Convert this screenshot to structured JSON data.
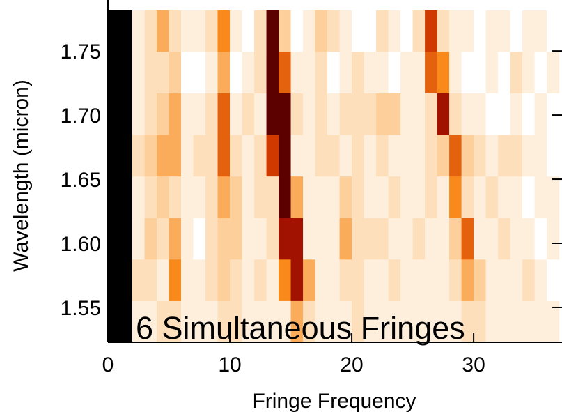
{
  "chart_data": {
    "type": "heatmap",
    "annotation": "6 Simultaneous Fringes",
    "xlabel": "Fringe Frequency",
    "ylabel": "Wavelength (micron)",
    "xlim": [
      0,
      37.25
    ],
    "xticks": [
      0,
      10,
      20,
      30
    ],
    "ylim": [
      1.5228,
      1.7816
    ],
    "yticks": [
      1.55,
      {
        "value": 1.6,
        "label": "1.60"
      },
      1.65,
      {
        "value": 1.7,
        "label": "1.70"
      },
      1.75
    ],
    "yedges": [
      1.5228,
      1.5552,
      1.5876,
      1.62,
      1.6524,
      1.6848,
      1.7172,
      1.7496,
      1.7816
    ],
    "colorscale": [
      [
        0,
        "#ffffff"
      ],
      [
        3,
        "#fdcf9a"
      ],
      [
        5,
        "#f8891a"
      ],
      [
        7,
        "#d03a00"
      ],
      [
        8.5,
        "#8a0000"
      ],
      [
        10,
        "#000000"
      ]
    ],
    "z": [
      [
        10,
        10,
        1,
        1,
        2,
        2,
        1,
        1,
        1,
        2,
        2,
        1,
        1,
        1,
        1,
        4,
        2,
        1,
        1,
        1,
        2,
        1,
        1,
        1,
        1,
        1,
        1,
        1,
        1,
        2,
        2,
        1,
        1,
        1,
        1,
        1,
        1
      ],
      [
        10,
        10,
        2,
        2,
        1,
        5,
        1,
        1,
        2,
        3,
        2,
        1,
        2,
        1,
        5,
        8,
        4,
        1,
        1,
        2,
        2,
        1,
        1,
        2,
        1,
        1,
        1,
        1,
        2,
        4,
        3,
        1,
        1,
        1,
        2,
        1,
        0
      ],
      [
        10,
        10,
        1,
        3,
        2,
        4,
        1,
        0,
        2,
        3,
        3,
        1,
        1,
        2,
        8,
        8,
        1,
        1,
        1,
        4,
        2,
        2,
        2,
        1,
        1,
        2,
        1,
        1,
        3,
        6,
        1,
        1,
        2,
        1,
        1,
        0,
        1
      ],
      [
        10,
        10,
        1,
        2,
        3,
        2,
        1,
        1,
        2,
        4,
        3,
        1,
        2,
        2,
        9,
        4,
        1,
        1,
        1,
        3,
        2,
        1,
        1,
        2,
        1,
        1,
        2,
        1,
        5,
        2,
        1,
        2,
        1,
        1,
        0,
        1,
        1
      ],
      [
        10,
        10,
        2,
        3,
        4,
        4,
        1,
        2,
        2,
        6,
        2,
        1,
        2,
        7,
        9,
        1,
        1,
        2,
        2,
        1,
        2,
        1,
        2,
        1,
        1,
        1,
        2,
        3,
        6,
        3,
        2,
        1,
        2,
        2,
        1,
        1,
        0
      ],
      [
        10,
        10,
        1,
        2,
        3,
        4,
        1,
        1,
        2,
        6,
        1,
        2,
        1,
        9,
        9,
        2,
        1,
        2,
        1,
        2,
        2,
        2,
        3,
        3,
        1,
        1,
        2,
        8,
        2,
        1,
        1,
        0,
        0,
        1,
        0,
        1,
        0
      ],
      [
        10,
        10,
        1,
        2,
        2,
        3,
        0,
        0,
        1,
        4,
        0,
        1,
        2,
        9,
        6,
        1,
        1,
        2,
        0,
        1,
        2,
        1,
        1,
        0,
        1,
        1,
        6,
        5,
        1,
        0,
        0,
        1,
        0,
        2,
        1,
        0,
        1
      ],
      [
        10,
        10,
        1,
        2,
        4,
        2,
        1,
        1,
        2,
        5,
        1,
        0,
        2,
        9,
        3,
        0,
        1,
        3,
        2,
        1,
        0,
        0,
        2,
        1,
        0,
        2,
        7,
        2,
        1,
        1,
        0,
        1,
        1,
        0,
        1,
        1,
        0
      ]
    ]
  }
}
